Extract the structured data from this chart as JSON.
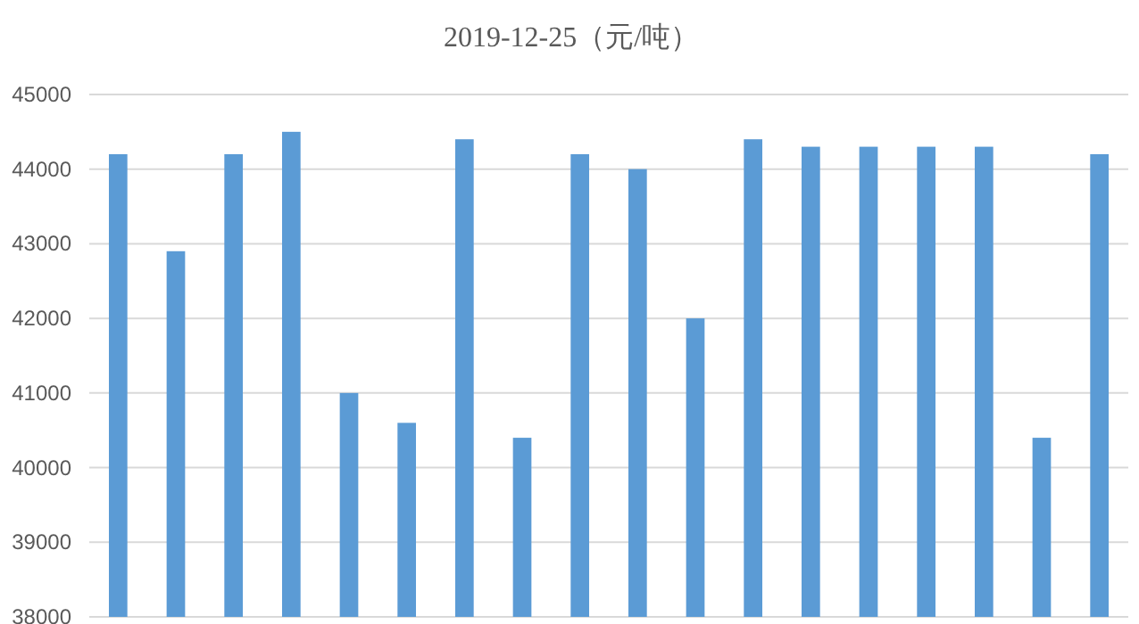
{
  "chart_data": {
    "type": "bar",
    "title": "2019-12-25（元/吨）",
    "categories": [
      null,
      null,
      null,
      null,
      null,
      null,
      null,
      null,
      null,
      null,
      null,
      null,
      null,
      null,
      null,
      null,
      null,
      null
    ],
    "values": [
      44200,
      42900,
      44200,
      44500,
      41000,
      40600,
      44400,
      40400,
      44200,
      44000,
      42000,
      44400,
      44300,
      44300,
      44300,
      44300,
      40400,
      44200
    ],
    "color": "#5b9bd5",
    "ylim": [
      38000,
      45000
    ],
    "yticks": [
      38000,
      39000,
      40000,
      41000,
      42000,
      43000,
      44000,
      45000
    ],
    "grid": "y",
    "tick_labels": "y"
  }
}
